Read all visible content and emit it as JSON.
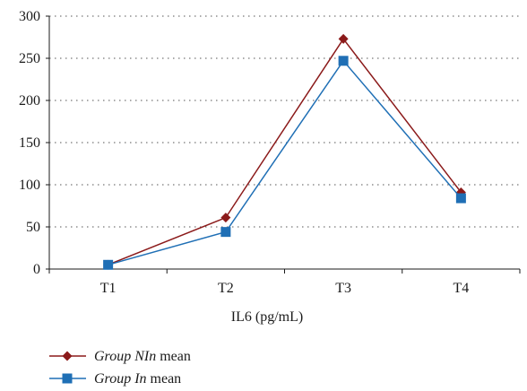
{
  "chart_data": {
    "type": "line",
    "categories": [
      "T1",
      "T2",
      "T3",
      "T4"
    ],
    "xlabel": "IL6 (pg/mL)",
    "ylabel": "",
    "ylim": [
      0,
      300
    ],
    "yticks": [
      0,
      50,
      100,
      150,
      200,
      250,
      300
    ],
    "grid": true,
    "legend_position": "bottom-left",
    "series": [
      {
        "name": "Group NIn mean",
        "name_italic": "Group NIn",
        "name_rest": " mean",
        "values": [
          5,
          61,
          273,
          91
        ],
        "color": "#8b1a1a",
        "marker": "diamond"
      },
      {
        "name": "Group In mean",
        "name_italic": "Group In",
        "name_rest": " mean",
        "values": [
          5,
          44,
          247,
          84
        ],
        "color": "#1f6fb5",
        "marker": "square"
      }
    ]
  }
}
